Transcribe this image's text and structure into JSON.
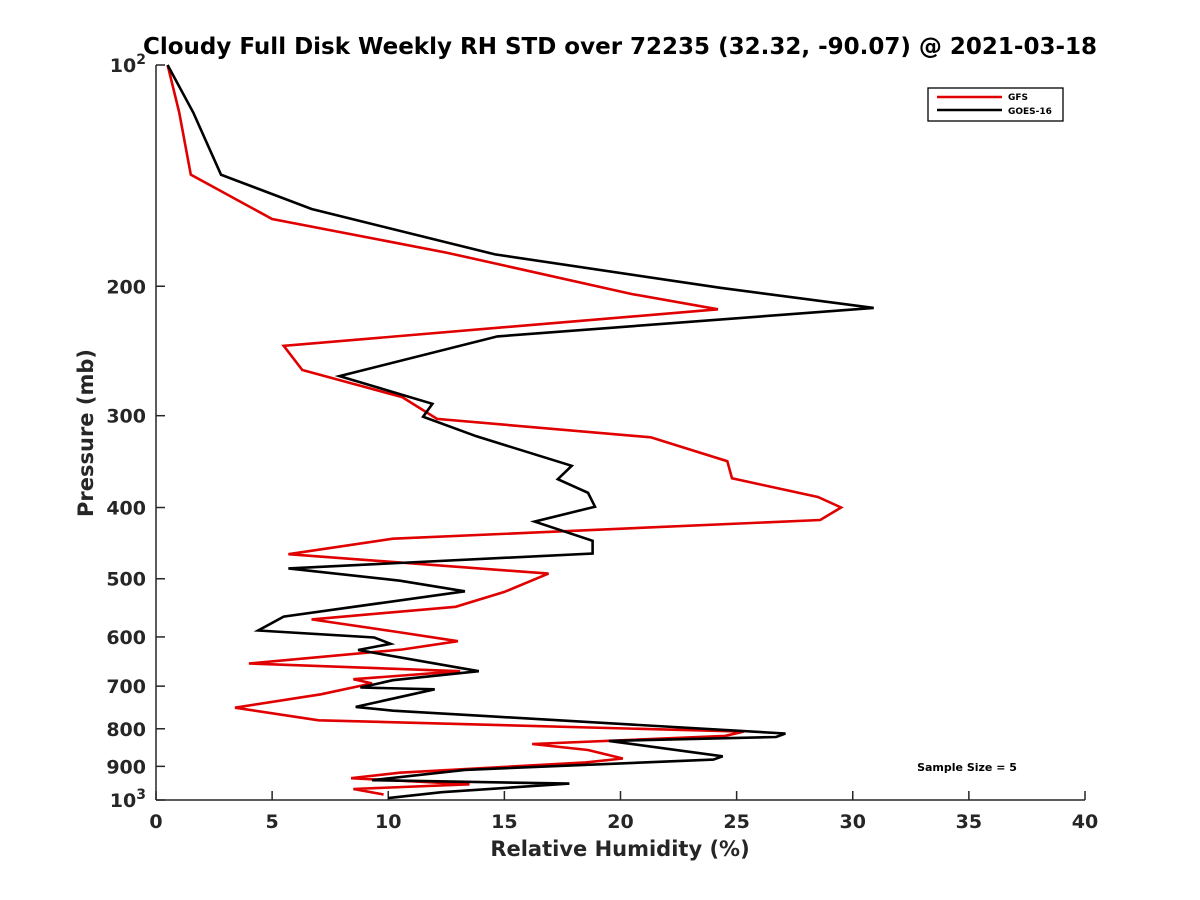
{
  "chart_data": {
    "type": "line",
    "title": "Cloudy Full Disk Weekly RH STD over 72235 (32.32, -90.07) @ 2021-03-18",
    "xlabel": "Relative Humidity (%)",
    "ylabel": "Pressure (mb)",
    "xlim": [
      0,
      40
    ],
    "ylim": [
      100,
      1000
    ],
    "yscale": "log",
    "y_reversed": true,
    "grid": false,
    "legend_position": "top-right",
    "x_ticks": [
      0,
      5,
      10,
      15,
      20,
      25,
      30,
      35,
      40
    ],
    "x_tick_labels": [
      "0",
      "5",
      "10",
      "15",
      "20",
      "25",
      "30",
      "35",
      "40"
    ],
    "y_ticks": [
      100,
      200,
      300,
      400,
      500,
      600,
      700,
      800,
      900,
      1000
    ],
    "y_tick_labels": [
      {
        "base": "10",
        "sup": "2"
      },
      {
        "base": "200",
        "sup": ""
      },
      {
        "base": "300",
        "sup": ""
      },
      {
        "base": "400",
        "sup": ""
      },
      {
        "base": "500",
        "sup": ""
      },
      {
        "base": "600",
        "sup": ""
      },
      {
        "base": "700",
        "sup": ""
      },
      {
        "base": "800",
        "sup": ""
      },
      {
        "base": "900",
        "sup": ""
      },
      {
        "base": "10",
        "sup": "3"
      }
    ],
    "annotation": "Sample Size = 5",
    "series": [
      {
        "name": "GFS",
        "color": "#e00000",
        "x": [
          0.5,
          1.0,
          1.5,
          5.0,
          12.5,
          20.5,
          24.2,
          5.5,
          6.3,
          10.6,
          12.1,
          21.3,
          24.6,
          24.8,
          28.5,
          29.5,
          28.6,
          10.2,
          5.7,
          16.9,
          15.0,
          12.9,
          6.7,
          10.3,
          13.0,
          10.6,
          4.0,
          13.1,
          8.5,
          9.3,
          7.1,
          3.4,
          7.0,
          25.3,
          24.5,
          16.2,
          18.6,
          20.1,
          18.5,
          10.5,
          8.4,
          13.5,
          8.5,
          9.8
        ],
        "y": [
          100,
          116,
          141,
          162,
          180,
          205,
          215,
          241,
          260,
          283,
          303,
          321,
          346,
          365,
          387,
          400,
          416,
          441,
          463,
          492,
          521,
          546,
          568,
          590,
          608,
          624,
          652,
          668,
          685,
          694,
          718,
          749,
          779,
          807,
          818,
          839,
          855,
          878,
          889,
          918,
          934,
          952,
          966,
          983
        ]
      },
      {
        "name": "GOES-16",
        "color": "#000000",
        "x": [
          0.5,
          1.6,
          2.8,
          6.7,
          14.6,
          24.3,
          30.9,
          14.7,
          7.9,
          11.9,
          11.5,
          13.8,
          17.9,
          17.3,
          18.6,
          18.9,
          16.3,
          18.8,
          18.8,
          5.7,
          10.5,
          13.3,
          5.5,
          4.4,
          9.4,
          10.1,
          8.7,
          13.9,
          10.2,
          8.8,
          12.0,
          8.6,
          10.2,
          14.3,
          27.1,
          26.7,
          19.5,
          24.4,
          24.0,
          13.3,
          9.3,
          17.8,
          12.3,
          10.0
        ],
        "y": [
          100,
          116,
          141,
          157,
          181,
          201,
          214,
          234,
          265,
          289,
          301,
          320,
          351,
          366,
          382,
          399,
          418,
          444,
          462,
          484,
          503,
          520,
          563,
          588,
          601,
          613,
          625,
          668,
          687,
          703,
          707,
          747,
          756,
          769,
          812,
          821,
          831,
          872,
          881,
          910,
          940,
          950,
          976,
          994
        ]
      }
    ]
  }
}
